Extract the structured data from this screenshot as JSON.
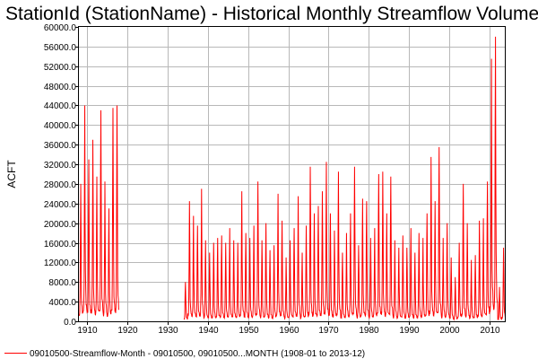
{
  "chart_data": {
    "type": "line",
    "title": "StationId (StationName) - Historical Monthly Streamflow Volume",
    "ylabel": "ACFT",
    "xlabel": "",
    "ylim": [
      0,
      60000
    ],
    "yticks": [
      "0.0",
      "4000.0",
      "8000.0",
      "12000.0",
      "16000.0",
      "20000.0",
      "24000.0",
      "28000.0",
      "32000.0",
      "36000.0",
      "40000.0",
      "44000.0",
      "48000.0",
      "52000.0",
      "56000.0",
      "60000.0"
    ],
    "xlim": [
      1908,
      2014
    ],
    "xticks": [
      "1910",
      "1920",
      "1930",
      "1940",
      "1950",
      "1960",
      "1970",
      "1980",
      "1990",
      "2000",
      "2010"
    ],
    "grid": true,
    "legend_position": "bottom-left",
    "series": [
      {
        "name": "09010500-Streamflow-Month - 09010500, 09010500...MONTH (1908-01 to 2013-12)",
        "color": "#ff0000",
        "annual_peaks": [
          [
            1908,
            28000
          ],
          [
            1909,
            44000
          ],
          [
            1910,
            33000
          ],
          [
            1911,
            37000
          ],
          [
            1912,
            29500
          ],
          [
            1913,
            43000
          ],
          [
            1914,
            28500
          ],
          [
            1915,
            23000
          ],
          [
            1916,
            43500
          ],
          [
            1917,
            44000
          ],
          [
            1934,
            8000
          ],
          [
            1935,
            24500
          ],
          [
            1936,
            21500
          ],
          [
            1937,
            19500
          ],
          [
            1938,
            27000
          ],
          [
            1939,
            16500
          ],
          [
            1940,
            14000
          ],
          [
            1941,
            16000
          ],
          [
            1942,
            17000
          ],
          [
            1943,
            17500
          ],
          [
            1944,
            16000
          ],
          [
            1945,
            19000
          ],
          [
            1946,
            16500
          ],
          [
            1947,
            16000
          ],
          [
            1948,
            26500
          ],
          [
            1949,
            18000
          ],
          [
            1950,
            17000
          ],
          [
            1951,
            19500
          ],
          [
            1952,
            28500
          ],
          [
            1953,
            16500
          ],
          [
            1954,
            20000
          ],
          [
            1955,
            14500
          ],
          [
            1956,
            15500
          ],
          [
            1957,
            26000
          ],
          [
            1958,
            20500
          ],
          [
            1959,
            13000
          ],
          [
            1960,
            16500
          ],
          [
            1961,
            19000
          ],
          [
            1962,
            25500
          ],
          [
            1963,
            14000
          ],
          [
            1964,
            19500
          ],
          [
            1965,
            31500
          ],
          [
            1966,
            22000
          ],
          [
            1967,
            23500
          ],
          [
            1968,
            26500
          ],
          [
            1969,
            32500
          ],
          [
            1970,
            22000
          ],
          [
            1971,
            18500
          ],
          [
            1972,
            30500
          ],
          [
            1973,
            14000
          ],
          [
            1974,
            18000
          ],
          [
            1975,
            22000
          ],
          [
            1976,
            31500
          ],
          [
            1977,
            15500
          ],
          [
            1978,
            25000
          ],
          [
            1979,
            24500
          ],
          [
            1980,
            17000
          ],
          [
            1981,
            19000
          ],
          [
            1982,
            30000
          ],
          [
            1983,
            30500
          ],
          [
            1984,
            22000
          ],
          [
            1985,
            29500
          ],
          [
            1986,
            16500
          ],
          [
            1987,
            15000
          ],
          [
            1988,
            17500
          ],
          [
            1989,
            15000
          ],
          [
            1990,
            19000
          ],
          [
            1991,
            14000
          ],
          [
            1992,
            18000
          ],
          [
            1993,
            17000
          ],
          [
            1994,
            22000
          ],
          [
            1995,
            33500
          ],
          [
            1996,
            24500
          ],
          [
            1997,
            35500
          ],
          [
            1998,
            17000
          ],
          [
            1999,
            20000
          ],
          [
            2000,
            13000
          ],
          [
            2001,
            9000
          ],
          [
            2002,
            16000
          ],
          [
            2003,
            28000
          ],
          [
            2004,
            20000
          ],
          [
            2005,
            12500
          ],
          [
            2006,
            13500
          ],
          [
            2007,
            20500
          ],
          [
            2008,
            21000
          ],
          [
            2009,
            28500
          ],
          [
            2010,
            53500
          ],
          [
            2011,
            58000
          ],
          [
            2012,
            7000
          ],
          [
            2013,
            15000
          ]
        ]
      }
    ]
  }
}
